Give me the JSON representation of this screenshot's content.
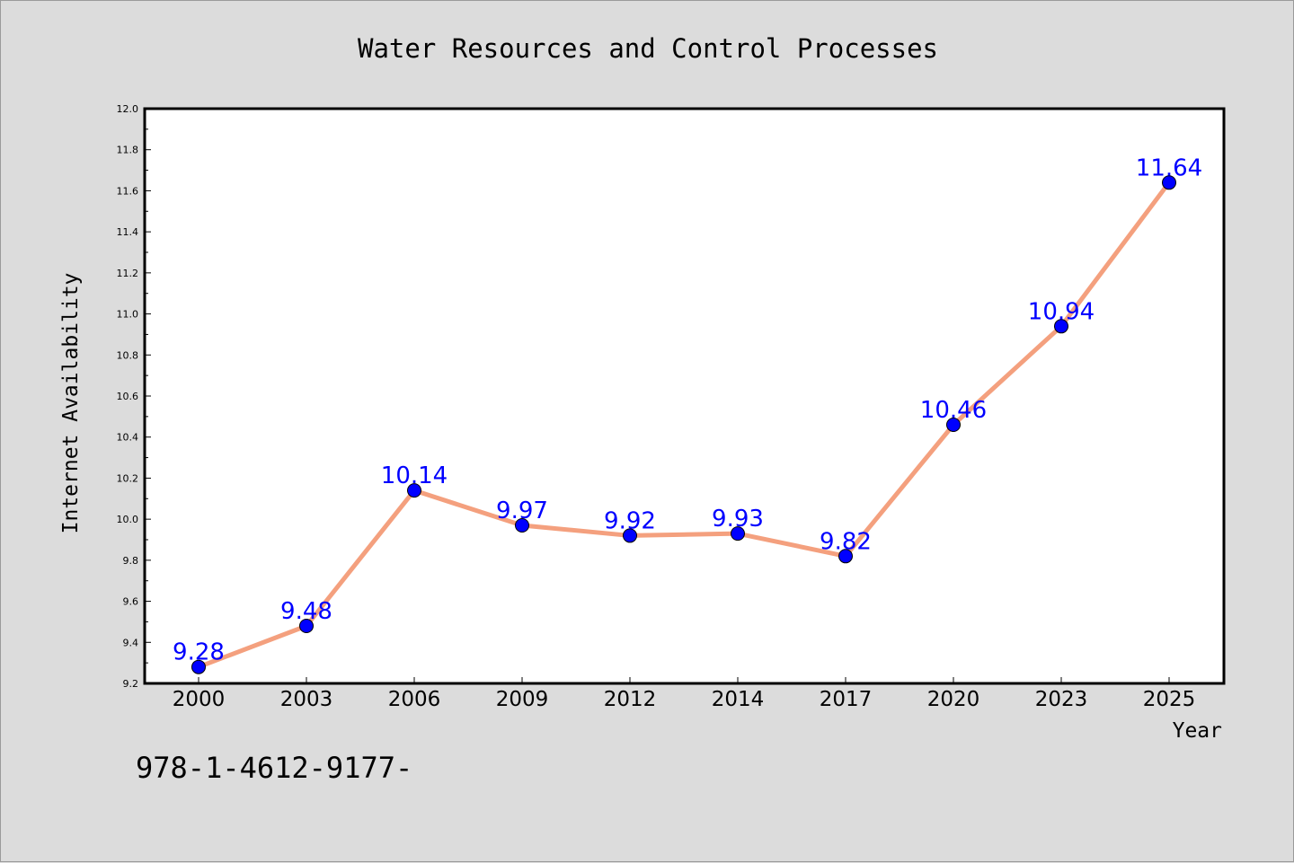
{
  "chart_data": {
    "type": "line",
    "title": "Water Resources and Control Processes",
    "xlabel": "Year",
    "ylabel": "Internet Availability",
    "categories": [
      "2000",
      "2003",
      "2006",
      "2009",
      "2012",
      "2014",
      "2017",
      "2020",
      "2023",
      "2025"
    ],
    "series": [
      {
        "values": [
          9.28,
          9.48,
          10.14,
          9.97,
          9.92,
          9.93,
          9.82,
          10.46,
          10.94,
          11.64
        ],
        "data_labels": [
          "9.28",
          "9.48",
          "10.14",
          "9.97",
          "9.92",
          "9.93",
          "9.82",
          "10.46",
          "10.94",
          "11.64"
        ],
        "line_color": "#f4a07e",
        "marker_color": "#0000ff"
      }
    ],
    "ylim": [
      9.2,
      12.0
    ],
    "yticks": [
      "9.2",
      "9.4",
      "9.6",
      "9.8",
      "10.0",
      "10.2",
      "10.4",
      "10.6",
      "10.8",
      "11.0",
      "11.2",
      "11.4",
      "11.6",
      "11.8",
      "12.0"
    ],
    "grid": false,
    "legend": "none"
  },
  "footer_text": "978-1-4612-9177-",
  "colors": {
    "background": "#dcdcdc",
    "plot_background": "#ffffff",
    "line": "#f4a07e",
    "marker": "#0000ff",
    "data_label": "#0000ff"
  }
}
